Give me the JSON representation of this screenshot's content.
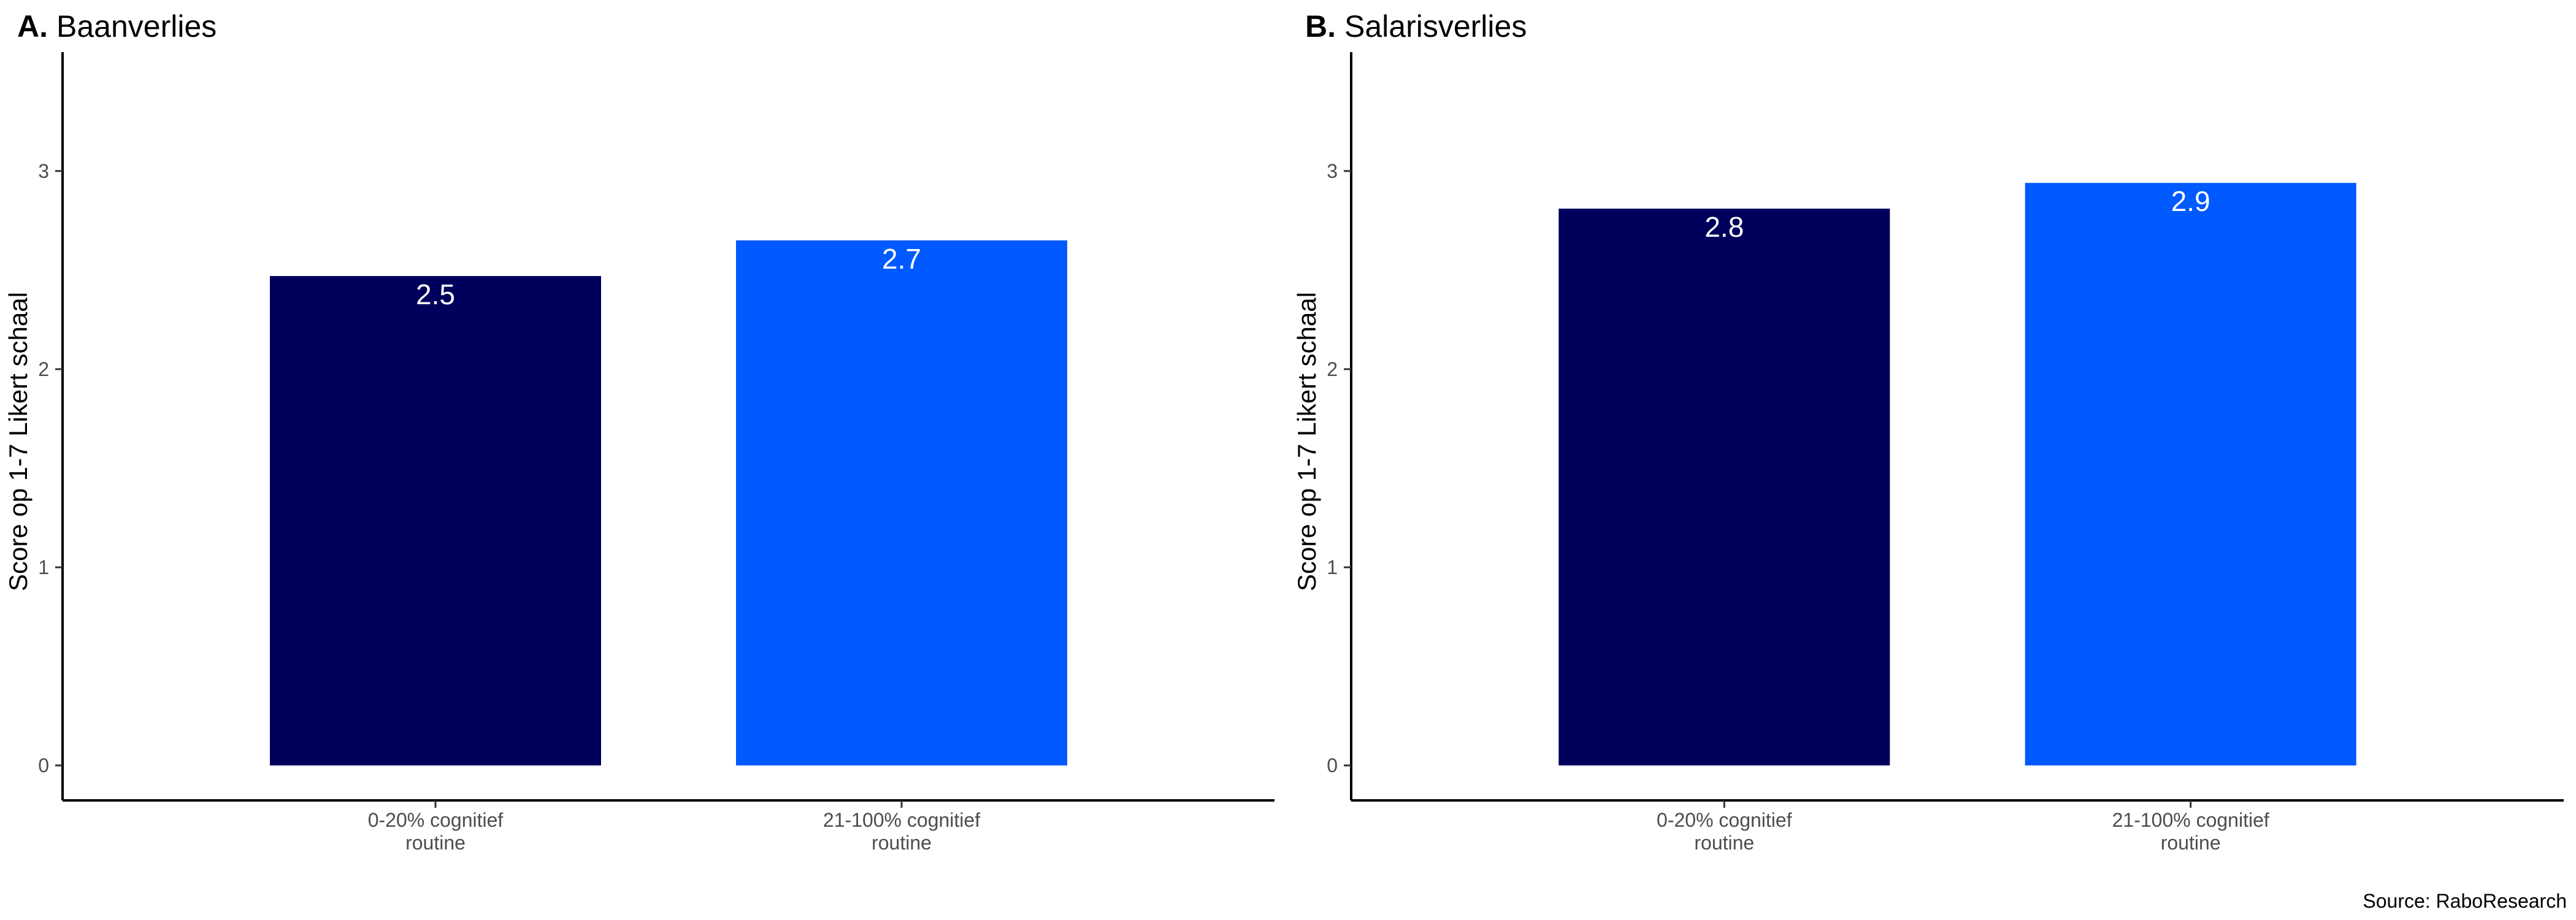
{
  "source": "Source: RaboResearch",
  "colors": {
    "series_1": "#00005c",
    "series_2": "#005aff",
    "bar_label": "#ffffff"
  },
  "chart_data": [
    {
      "type": "bar",
      "panel_tag": "A.",
      "title": "Baanverlies",
      "ylabel": "Score op 1-7 Likert schaal",
      "xlabel": "",
      "ylim": [
        0,
        3.6
      ],
      "yticks": [
        0,
        1,
        2,
        3
      ],
      "categories": [
        [
          "0-20% cognitief",
          "routine"
        ],
        [
          "21-100% cognitief",
          "routine"
        ]
      ],
      "values": [
        2.47,
        2.65
      ],
      "data_labels": [
        "2.5",
        "2.7"
      ],
      "bar_colors": [
        "#00005c",
        "#005aff"
      ],
      "grid": false,
      "legend": "none"
    },
    {
      "type": "bar",
      "panel_tag": "B.",
      "title": "Salarisverlies",
      "ylabel": "Score op 1-7 Likert schaal",
      "xlabel": "",
      "ylim": [
        0,
        3.6
      ],
      "yticks": [
        0,
        1,
        2,
        3
      ],
      "categories": [
        [
          "0-20% cognitief",
          "routine"
        ],
        [
          "21-100% cognitief",
          "routine"
        ]
      ],
      "values": [
        2.81,
        2.94
      ],
      "data_labels": [
        "2.8",
        "2.9"
      ],
      "bar_colors": [
        "#00005c",
        "#005aff"
      ],
      "grid": false,
      "legend": "none"
    }
  ]
}
